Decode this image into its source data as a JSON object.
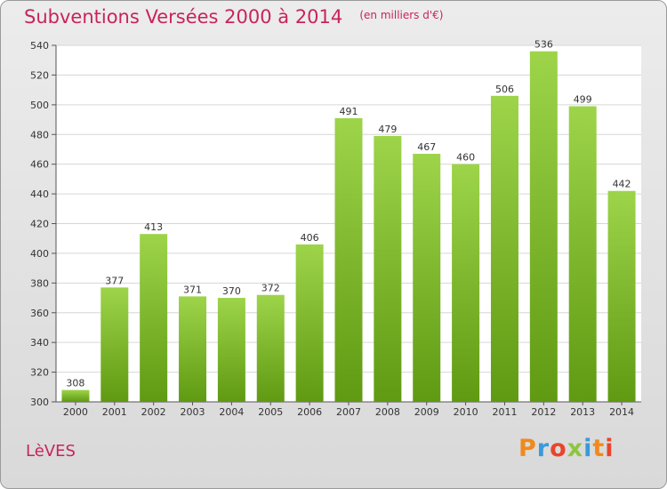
{
  "title": "Subventions Versées 2000 à 2014",
  "subtitle": "(en milliers d'€)",
  "commune": "LèVES",
  "logo": {
    "text": "Proxiti",
    "letters": [
      {
        "ch": "P",
        "color": "#f08a1c"
      },
      {
        "ch": "r",
        "color": "#3a9ad9"
      },
      {
        "ch": "o",
        "color": "#e8452c"
      },
      {
        "ch": "x",
        "color": "#8dc63f"
      },
      {
        "ch": "i",
        "color": "#3a9ad9"
      },
      {
        "ch": "t",
        "color": "#f08a1c"
      },
      {
        "ch": "i",
        "color": "#e8452c"
      }
    ]
  },
  "colors": {
    "accent": "#c8245a",
    "bar_light": "#9dd44a",
    "bar_dark": "#5f9a12"
  },
  "chart_data": {
    "type": "bar",
    "categories": [
      "2000",
      "2001",
      "2002",
      "2003",
      "2004",
      "2005",
      "2006",
      "2007",
      "2008",
      "2009",
      "2010",
      "2011",
      "2012",
      "2013",
      "2014"
    ],
    "values": [
      308,
      377,
      413,
      371,
      370,
      372,
      406,
      491,
      479,
      467,
      460,
      506,
      536,
      499,
      442
    ],
    "ylim": [
      300,
      540
    ],
    "yticks": [
      300,
      320,
      340,
      360,
      380,
      400,
      420,
      440,
      460,
      480,
      500,
      520,
      540
    ],
    "grid": true,
    "xlabel": "",
    "ylabel": ""
  }
}
